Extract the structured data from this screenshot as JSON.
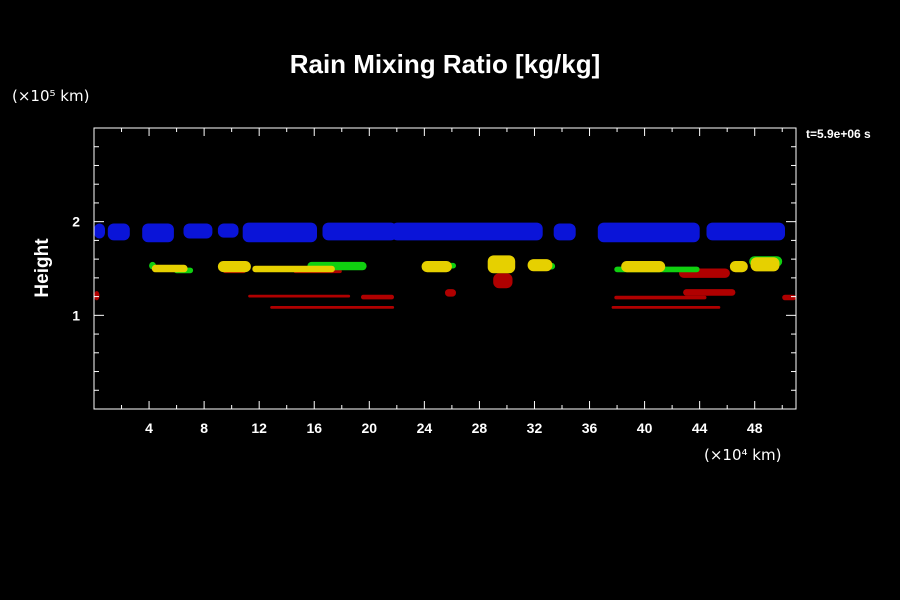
{
  "chart_data": {
    "type": "contour",
    "title": "Rain Mixing Ratio [kg/kg]",
    "xlabel": "",
    "ylabel": "Height",
    "x_unit": "(×10⁴ km)",
    "y_unit": "(×10⁵ km)",
    "time_label": "t=5.9e+06 s",
    "xlim": [
      0,
      51
    ],
    "ylim": [
      0,
      3
    ],
    "x_ticks": [
      4,
      8,
      12,
      16,
      20,
      24,
      28,
      32,
      36,
      40,
      44,
      48
    ],
    "y_ticks": [
      1,
      2
    ],
    "colors": {
      "blue": "#0a14d8",
      "red": "#b00000",
      "yellow": "#e6d000",
      "green": "#10d010",
      "axes": "#ffffff",
      "background": "#000000"
    },
    "blobs": [
      {
        "x0": 0.0,
        "x1": 0.8,
        "ybot": 1.82,
        "ytop": 1.98,
        "level": "blue"
      },
      {
        "x0": 1.0,
        "x1": 2.6,
        "ybot": 1.8,
        "ytop": 1.98,
        "level": "blue"
      },
      {
        "x0": 3.5,
        "x1": 5.8,
        "ybot": 1.78,
        "ytop": 1.98,
        "level": "blue"
      },
      {
        "x0": 6.5,
        "x1": 8.6,
        "ybot": 1.82,
        "ytop": 1.98,
        "level": "blue"
      },
      {
        "x0": 9.0,
        "x1": 10.5,
        "ybot": 1.83,
        "ytop": 1.98,
        "level": "blue"
      },
      {
        "x0": 10.8,
        "x1": 16.2,
        "ybot": 1.78,
        "ytop": 1.99,
        "level": "blue"
      },
      {
        "x0": 16.6,
        "x1": 22.0,
        "ybot": 1.8,
        "ytop": 1.99,
        "level": "blue"
      },
      {
        "x0": 21.6,
        "x1": 32.6,
        "ybot": 1.8,
        "ytop": 1.99,
        "level": "blue"
      },
      {
        "x0": 33.4,
        "x1": 35.0,
        "ybot": 1.8,
        "ytop": 1.98,
        "level": "blue"
      },
      {
        "x0": 36.6,
        "x1": 44.0,
        "ybot": 1.78,
        "ytop": 1.99,
        "level": "blue"
      },
      {
        "x0": 44.5,
        "x1": 50.2,
        "ybot": 1.8,
        "ytop": 1.99,
        "level": "blue"
      },
      {
        "x0": 4.0,
        "x1": 4.5,
        "ybot": 1.49,
        "ytop": 1.57,
        "level": "green"
      },
      {
        "x0": 4.2,
        "x1": 6.8,
        "ybot": 1.46,
        "ytop": 1.54,
        "level": "yellow"
      },
      {
        "x0": 5.8,
        "x1": 7.2,
        "ybot": 1.45,
        "ytop": 1.51,
        "level": "green"
      },
      {
        "x0": 9.0,
        "x1": 11.4,
        "ybot": 1.46,
        "ytop": 1.58,
        "level": "yellow"
      },
      {
        "x0": 9.4,
        "x1": 11.0,
        "ybot": 1.45,
        "ytop": 1.49,
        "level": "red"
      },
      {
        "x0": 11.5,
        "x1": 17.5,
        "ybot": 1.46,
        "ytop": 1.53,
        "level": "yellow"
      },
      {
        "x0": 15.5,
        "x1": 19.8,
        "ybot": 1.48,
        "ytop": 1.57,
        "level": "green"
      },
      {
        "x0": 14.5,
        "x1": 18.0,
        "ybot": 1.45,
        "ytop": 1.49,
        "level": "red"
      },
      {
        "x0": 23.8,
        "x1": 26.0,
        "ybot": 1.46,
        "ytop": 1.58,
        "level": "yellow"
      },
      {
        "x0": 25.5,
        "x1": 26.3,
        "ybot": 1.5,
        "ytop": 1.56,
        "level": "green"
      },
      {
        "x0": 28.6,
        "x1": 30.6,
        "ybot": 1.45,
        "ytop": 1.64,
        "level": "yellow"
      },
      {
        "x0": 29.0,
        "x1": 30.4,
        "ybot": 1.29,
        "ytop": 1.45,
        "level": "red"
      },
      {
        "x0": 31.5,
        "x1": 33.3,
        "ybot": 1.47,
        "ytop": 1.6,
        "level": "yellow"
      },
      {
        "x0": 32.4,
        "x1": 33.5,
        "ybot": 1.49,
        "ytop": 1.56,
        "level": "green"
      },
      {
        "x0": 37.8,
        "x1": 44.0,
        "ybot": 1.46,
        "ytop": 1.52,
        "level": "green"
      },
      {
        "x0": 38.3,
        "x1": 41.5,
        "ybot": 1.46,
        "ytop": 1.58,
        "level": "yellow"
      },
      {
        "x0": 42.5,
        "x1": 46.2,
        "ybot": 1.4,
        "ytop": 1.5,
        "level": "red"
      },
      {
        "x0": 46.2,
        "x1": 47.5,
        "ybot": 1.46,
        "ytop": 1.58,
        "level": "yellow"
      },
      {
        "x0": 47.7,
        "x1": 49.8,
        "ybot": 1.47,
        "ytop": 1.62,
        "level": "yellow"
      },
      {
        "x0": 47.6,
        "x1": 50.0,
        "ybot": 1.52,
        "ytop": 1.63,
        "level": "green"
      },
      {
        "x0": 0.0,
        "x1": 0.4,
        "ybot": 1.16,
        "ytop": 1.26,
        "level": "red"
      },
      {
        "x0": 11.2,
        "x1": 18.6,
        "ybot": 1.19,
        "ytop": 1.22,
        "level": "red"
      },
      {
        "x0": 19.4,
        "x1": 21.8,
        "ybot": 1.17,
        "ytop": 1.22,
        "level": "red"
      },
      {
        "x0": 12.8,
        "x1": 21.8,
        "ybot": 1.07,
        "ytop": 1.1,
        "level": "red"
      },
      {
        "x0": 25.5,
        "x1": 26.3,
        "ybot": 1.2,
        "ytop": 1.28,
        "level": "red"
      },
      {
        "x0": 37.8,
        "x1": 44.5,
        "ybot": 1.17,
        "ytop": 1.21,
        "level": "red"
      },
      {
        "x0": 37.6,
        "x1": 45.5,
        "ybot": 1.07,
        "ytop": 1.1,
        "level": "red"
      },
      {
        "x0": 42.8,
        "x1": 46.6,
        "ybot": 1.21,
        "ytop": 1.28,
        "level": "red"
      },
      {
        "x0": 50.0,
        "x1": 51.0,
        "ybot": 1.16,
        "ytop": 1.22,
        "level": "red"
      }
    ]
  }
}
